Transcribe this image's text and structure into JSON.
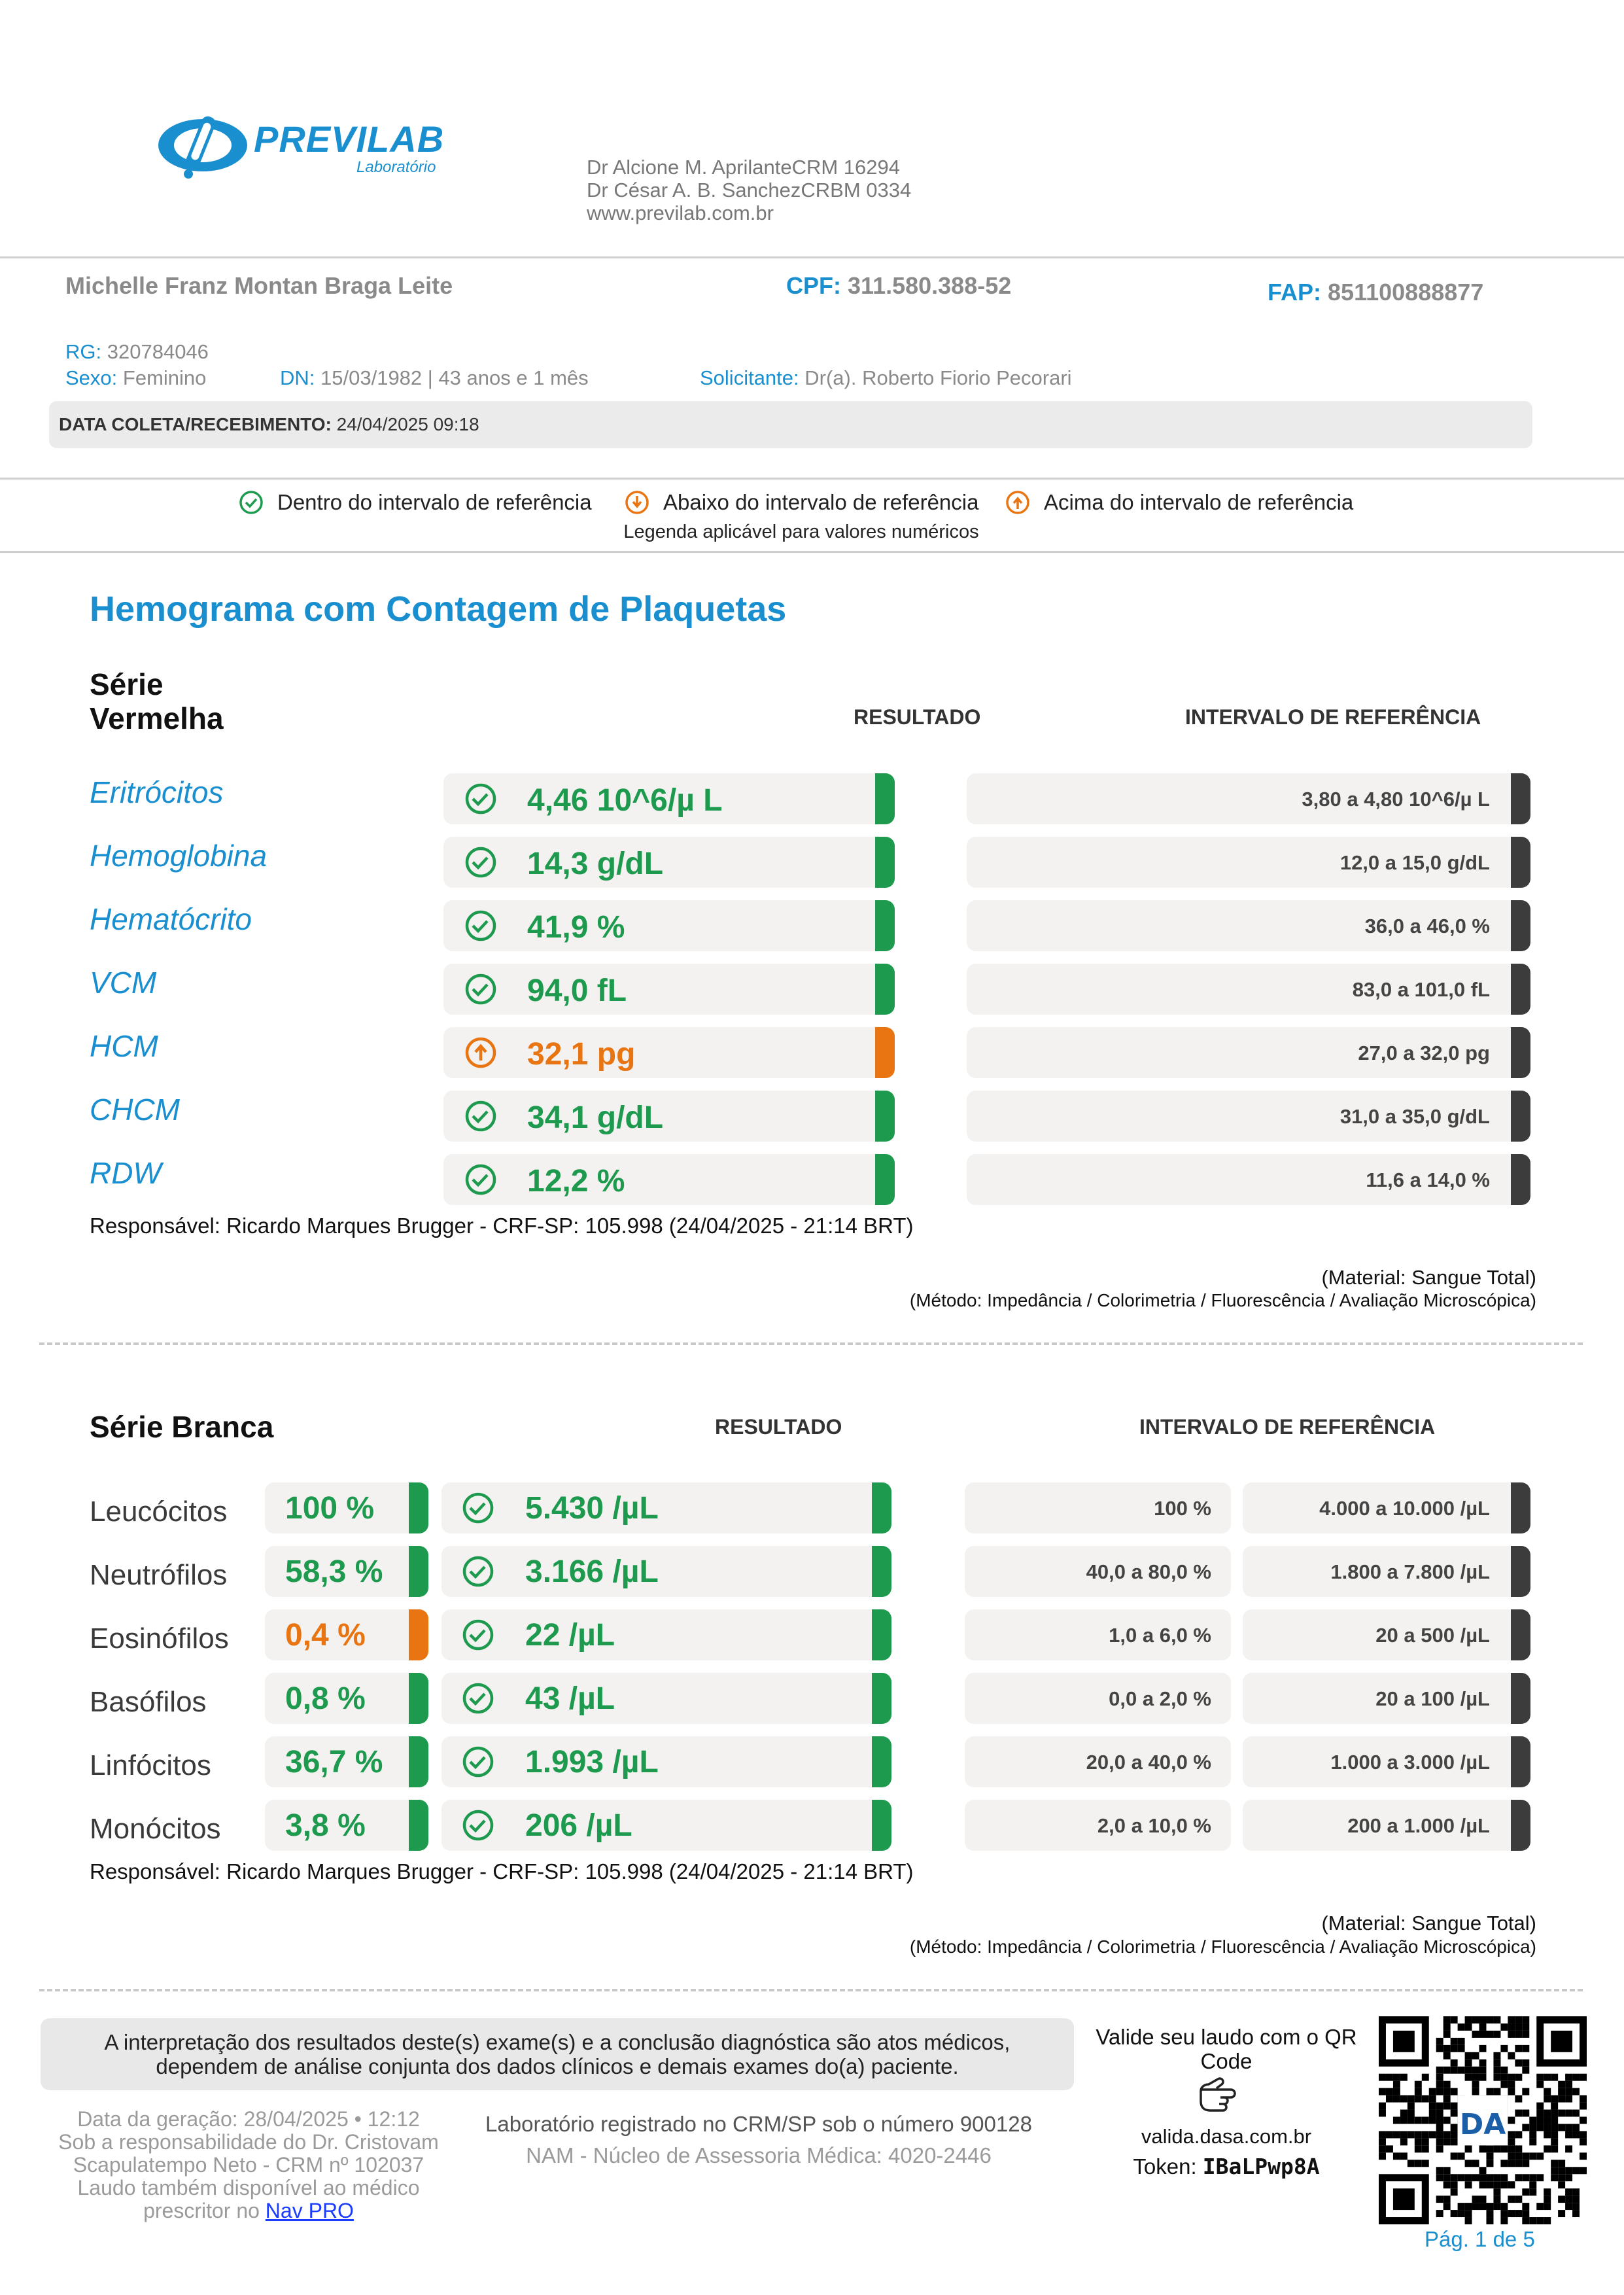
{
  "brand": {
    "name": "PREVILAB",
    "subtitle": "Laboratório"
  },
  "doctors": [
    "Dr Alcione M. AprilanteCRM 16294",
    "Dr César A. B. SanchezCRBM 0334",
    "www.previlab.com.br"
  ],
  "patient": {
    "name": "Michelle Franz Montan Braga Leite",
    "cpf_label": "CPF:",
    "cpf": "311.580.388-52",
    "fap_label": "FAP:",
    "fap": "851100888877",
    "rg_label": "RG:",
    "rg": "320784046",
    "sex_label": "Sexo:",
    "sex": "Feminino",
    "dn_label": "DN:",
    "dn": "15/03/1982 | 43 anos e 1 mês",
    "requester_label": "Solicitante:",
    "requester": "Dr(a). Roberto Fiorio Pecorari",
    "collection_label": "DATA COLETA/RECEBIMENTO:",
    "collection": "24/04/2025 09:18"
  },
  "legend": {
    "within": "Dentro do intervalo de referência",
    "below": "Abaixo do intervalo de referência",
    "above": "Acima do intervalo de referência",
    "note": "Legenda aplicável para valores numéricos"
  },
  "exam_title": "Hemograma com Contagem de Plaquetas",
  "red_series": {
    "title_line1": "Série",
    "title_line2": "Vermelha",
    "result_header": "RESULTADO",
    "ref_header": "INTERVALO DE REFERÊNCIA",
    "rows": [
      {
        "name": "Eritrócitos",
        "value": "4,46 10^6/µ L",
        "status": "within",
        "ref": "3,80 a 4,80 10^6/µ L"
      },
      {
        "name": "Hemoglobina",
        "value": "14,3 g/dL",
        "status": "within",
        "ref": "12,0 a 15,0 g/dL"
      },
      {
        "name": "Hematócrito",
        "value": "41,9 %",
        "status": "within",
        "ref": "36,0 a 46,0 %"
      },
      {
        "name": "VCM",
        "value": "94,0 fL",
        "status": "within",
        "ref": "83,0 a 101,0 fL"
      },
      {
        "name": "HCM",
        "value": "32,1 pg",
        "status": "above",
        "ref": "27,0 a 32,0 pg"
      },
      {
        "name": "CHCM",
        "value": "34,1 g/dL",
        "status": "within",
        "ref": "31,0 a 35,0 g/dL"
      },
      {
        "name": "RDW",
        "value": "12,2 %",
        "status": "within",
        "ref": "11,6 a 14,0 %"
      }
    ],
    "responsible": "Responsável: Ricardo Marques Brugger - CRF-SP: 105.998 (24/04/2025 - 21:14 BRT)",
    "material": "(Material: Sangue Total)",
    "method": "(Método: Impedância / Colorimetria / Fluorescência / Avaliação Microscópica)"
  },
  "white_series": {
    "title": "Série Branca",
    "result_header": "RESULTADO",
    "ref_header": "INTERVALO DE REFERÊNCIA",
    "rows": [
      {
        "name": "Leucócitos",
        "pct": "100 %",
        "pct_status": "within",
        "abs": "5.430 /µL",
        "abs_status": "within",
        "ref_pct": "100 %",
        "ref_abs": "4.000 a 10.000 /µL"
      },
      {
        "name": "Neutrófilos",
        "pct": "58,3 %",
        "pct_status": "within",
        "abs": "3.166 /µL",
        "abs_status": "within",
        "ref_pct": "40,0 a 80,0 %",
        "ref_abs": "1.800 a 7.800 /µL"
      },
      {
        "name": "Eosinófilos",
        "pct": "0,4 %",
        "pct_status": "below",
        "abs": "22 /µL",
        "abs_status": "within",
        "ref_pct": "1,0 a 6,0 %",
        "ref_abs": "20 a 500 /µL"
      },
      {
        "name": "Basófilos",
        "pct": "0,8 %",
        "pct_status": "within",
        "abs": "43 /µL",
        "abs_status": "within",
        "ref_pct": "0,0 a 2,0 %",
        "ref_abs": "20 a 100 /µL"
      },
      {
        "name": "Linfócitos",
        "pct": "36,7 %",
        "pct_status": "within",
        "abs": "1.993 /µL",
        "abs_status": "within",
        "ref_pct": "20,0 a 40,0 %",
        "ref_abs": "1.000 a 3.000 /µL"
      },
      {
        "name": "Monócitos",
        "pct": "3,8 %",
        "pct_status": "within",
        "abs": "206 /µL",
        "abs_status": "within",
        "ref_pct": "2,0 a 10,0 %",
        "ref_abs": "200 a 1.000 /µL"
      }
    ],
    "responsible": "Responsável: Ricardo Marques Brugger - CRF-SP: 105.998 (24/04/2025 - 21:14 BRT)",
    "material": "(Material: Sangue Total)",
    "method": "(Método: Impedância / Colorimetria / Fluorescência / Avaliação Microscópica)"
  },
  "footer": {
    "disclaimer_line1": "A interpretação dos resultados deste(s) exame(s) e a conclusão diagnóstica são atos médicos,",
    "disclaimer_line2": "dependem de análise conjunta dos dados clínicos e demais exames do(a) paciente.",
    "generation": "Data da geração: 28/04/2025 • 12:12",
    "responsibility_1": "Sob a responsabilidade do Dr. Cristovam",
    "responsibility_2": "Scapulatempo Neto - CRM nº 102037",
    "available_1": "Laudo também disponível ao médico",
    "available_2": "prescritor no",
    "nav_link": "Nav PRO",
    "lab_registration": "Laboratório registrado no CRM/SP sob o número 900128",
    "nam": "NAM - Núcleo de Assessoria Médica: 4020-2446",
    "qr_text_1": "Valide seu laudo com o QR",
    "qr_text_2": "Code",
    "qr_url": "valida.dasa.com.br",
    "token_label": "Token:",
    "token": "IBaLPwp8A",
    "page": "Pág. 1 de 5"
  },
  "colors": {
    "accent_blue": "#1a8fd0",
    "within_green": "#1e9a4f",
    "out_orange": "#e87511",
    "ref_dark": "#3c3c3c"
  },
  "icons": {
    "within": "check-circle-icon",
    "below": "arrow-down-circle-icon",
    "above": "arrow-up-circle-icon",
    "pointer": "hand-pointer-icon"
  }
}
